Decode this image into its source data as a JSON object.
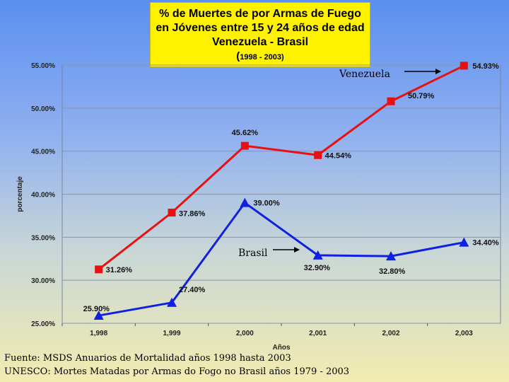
{
  "chart_data": {
    "type": "line",
    "title_lines": [
      "% de Muertes de por Armas de Fuego",
      "en Jóvenes entre 15 y 24 años de edad",
      "Venezuela - Brasil"
    ],
    "subtitle_open": "(",
    "subtitle_range": "1998 - 2003)",
    "xlabel": "Años",
    "ylabel": "porcentaje",
    "categories": [
      "1,998",
      "1,999",
      "2,000",
      "2,001",
      "2,002",
      "2,003"
    ],
    "x": [
      1998,
      1999,
      2000,
      2001,
      2002,
      2003
    ],
    "ylim": [
      25,
      55
    ],
    "yticks": [
      "25.00%",
      "30.00%",
      "35.00%",
      "40.00%",
      "45.00%",
      "50.00%",
      "55.00%"
    ],
    "grid": true,
    "series": [
      {
        "name": "Venezuela",
        "color": "#e81010",
        "marker": "square",
        "values": [
          31.26,
          37.86,
          45.62,
          44.54,
          50.79,
          54.93
        ],
        "labels": [
          "31.26%",
          "37.86%",
          "45.62%",
          "44.54%",
          "50.79%",
          "54.93%"
        ]
      },
      {
        "name": "Brasil",
        "color": "#1020e0",
        "marker": "triangle",
        "values": [
          25.9,
          27.4,
          39.0,
          32.9,
          32.8,
          34.4
        ],
        "labels": [
          "25.90%",
          "27.40%",
          "39.00%",
          "32.90%",
          "32.80%",
          "34.40%"
        ]
      }
    ]
  },
  "source": {
    "line1": "Fuente: MSDS Anuarios de Mortalidad años 1998 hasta 2003",
    "line2": "UNESCO: Mortes Matadas por Armas do Fogo no Brasil años 1979 - 2003"
  }
}
